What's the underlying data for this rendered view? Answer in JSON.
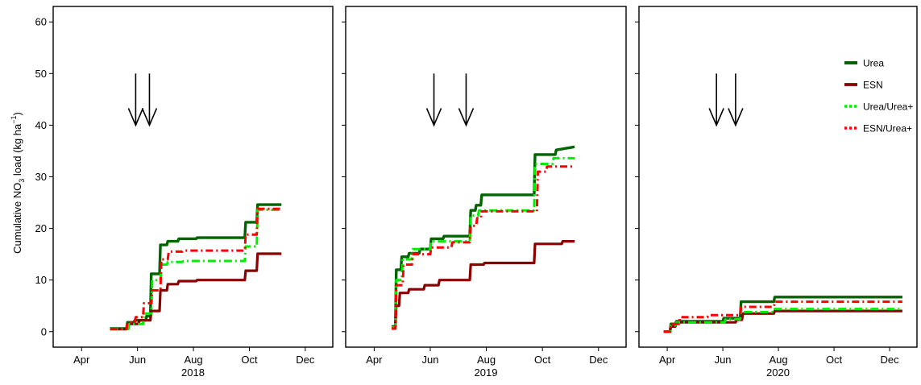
{
  "chart_data": {
    "type": "line",
    "ylabel": {
      "prefix": "Cumulative NO",
      "sub": "3",
      "middle": " load (kg ha",
      "sup": "−1",
      "suffix": ")"
    },
    "ylim": [
      -3,
      63
    ],
    "yticks": [
      0,
      10,
      20,
      30,
      40,
      50,
      60
    ],
    "xticks": [
      "Apr",
      "Jun",
      "Aug",
      "Oct",
      "Dec"
    ],
    "legend": {
      "placement": "top-right of third panel",
      "entries": [
        "Urea",
        "ESN",
        "Urea/Urea+",
        "ESN/Urea+"
      ]
    },
    "colors": {
      "Urea": "#006400",
      "ESN": "#8b0000",
      "Urea/Urea+": "#00ee00",
      "ESN/Urea+": "#ff0000"
    },
    "panels": [
      {
        "year": "2018",
        "arrows_x": [
          "2018-05-30",
          "2018-06-14"
        ],
        "series": [
          {
            "name": "Urea",
            "x": [
              "2018-05-02",
              "2018-05-20",
              "2018-05-21",
              "2018-05-28",
              "2018-05-29",
              "2018-06-10",
              "2018-06-11",
              "2018-06-15",
              "2018-06-16",
              "2018-06-25",
              "2018-06-26",
              "2018-07-03",
              "2018-07-04",
              "2018-07-15",
              "2018-07-16",
              "2018-08-04",
              "2018-08-05",
              "2018-09-26",
              "2018-09-27",
              "2018-10-09",
              "2018-10-10",
              "2018-11-05"
            ],
            "y": [
              0.6,
              0.6,
              1.8,
              1.8,
              2.2,
              2.2,
              3.0,
              3.0,
              11.2,
              11.2,
              16.8,
              16.8,
              17.5,
              17.5,
              18.0,
              18.0,
              18.2,
              18.2,
              21.2,
              21.2,
              24.6,
              24.6
            ]
          },
          {
            "name": "ESN",
            "x": [
              "2018-05-02",
              "2018-05-20",
              "2018-05-21",
              "2018-06-02",
              "2018-06-03",
              "2018-06-15",
              "2018-06-16",
              "2018-06-25",
              "2018-06-26",
              "2018-07-03",
              "2018-07-04",
              "2018-07-15",
              "2018-07-16",
              "2018-08-04",
              "2018-08-05",
              "2018-09-26",
              "2018-09-27",
              "2018-10-09",
              "2018-10-10",
              "2018-11-05"
            ],
            "y": [
              0.5,
              0.5,
              1.5,
              1.5,
              2.2,
              2.2,
              4.0,
              4.0,
              8.0,
              8.0,
              9.2,
              9.2,
              9.8,
              9.8,
              10.0,
              10.0,
              11.8,
              11.8,
              15.1,
              15.1
            ]
          },
          {
            "name": "Urea/Urea+",
            "x": [
              "2018-05-02",
              "2018-05-22",
              "2018-05-23",
              "2018-06-07",
              "2018-06-08",
              "2018-06-16",
              "2018-06-17",
              "2018-06-26",
              "2018-06-27",
              "2018-07-03",
              "2018-07-04",
              "2018-07-20",
              "2018-07-21",
              "2018-09-26",
              "2018-09-27",
              "2018-10-09",
              "2018-10-10",
              "2018-11-05"
            ],
            "y": [
              0.5,
              0.5,
              1.5,
              1.5,
              3.5,
              3.5,
              10.0,
              10.0,
              13.0,
              13.0,
              13.5,
              13.5,
              13.7,
              13.7,
              16.5,
              16.5,
              23.6,
              23.6
            ]
          },
          {
            "name": "ESN/Urea+",
            "x": [
              "2018-05-02",
              "2018-05-20",
              "2018-05-21",
              "2018-05-29",
              "2018-05-30",
              "2018-06-07",
              "2018-06-08",
              "2018-06-16",
              "2018-06-17",
              "2018-06-26",
              "2018-06-27",
              "2018-07-04",
              "2018-07-05",
              "2018-07-20",
              "2018-07-21",
              "2018-09-26",
              "2018-09-27",
              "2018-10-09",
              "2018-10-10",
              "2018-11-05"
            ],
            "y": [
              0.5,
              0.5,
              1.8,
              1.8,
              2.8,
              2.8,
              5.5,
              5.5,
              8.0,
              8.0,
              14.0,
              14.0,
              15.5,
              15.5,
              15.7,
              15.7,
              18.8,
              18.8,
              23.8,
              23.8
            ]
          }
        ]
      },
      {
        "year": "2019",
        "arrows_x": [
          "2019-06-05",
          "2019-07-10"
        ],
        "series": [
          {
            "name": "Urea",
            "x": [
              "2019-04-20",
              "2019-04-24",
              "2019-04-25",
              "2019-04-30",
              "2019-05-01",
              "2019-05-08",
              "2019-05-09",
              "2019-05-20",
              "2019-05-21",
              "2019-06-01",
              "2019-06-02",
              "2019-06-15",
              "2019-06-16",
              "2019-07-14",
              "2019-07-15",
              "2019-07-20",
              "2019-07-21",
              "2019-07-26",
              "2019-07-27",
              "2019-09-22",
              "2019-09-23",
              "2019-10-15",
              "2019-10-16",
              "2019-11-05"
            ],
            "y": [
              1.0,
              1.0,
              12.0,
              12.0,
              14.5,
              14.5,
              15.2,
              15.2,
              16.0,
              16.0,
              18.0,
              18.0,
              18.5,
              18.5,
              23.5,
              23.5,
              24.5,
              24.5,
              26.5,
              26.5,
              34.3,
              34.3,
              35.2,
              35.8
            ]
          },
          {
            "name": "ESN",
            "x": [
              "2019-04-20",
              "2019-04-24",
              "2019-04-25",
              "2019-04-28",
              "2019-04-29",
              "2019-05-08",
              "2019-05-09",
              "2019-05-25",
              "2019-05-26",
              "2019-06-10",
              "2019-06-11",
              "2019-07-14",
              "2019-07-15",
              "2019-07-29",
              "2019-07-30",
              "2019-09-22",
              "2019-09-23",
              "2019-10-22",
              "2019-10-23",
              "2019-11-05"
            ],
            "y": [
              0.6,
              0.6,
              5.0,
              5.0,
              7.5,
              7.5,
              8.2,
              8.2,
              9.0,
              9.0,
              10.0,
              10.0,
              13.0,
              13.0,
              13.3,
              13.3,
              17.0,
              17.0,
              17.5,
              17.5
            ]
          },
          {
            "name": "Urea/Urea+",
            "x": [
              "2019-04-20",
              "2019-04-24",
              "2019-04-25",
              "2019-05-01",
              "2019-05-02",
              "2019-05-12",
              "2019-05-13",
              "2019-06-01",
              "2019-06-02",
              "2019-07-14",
              "2019-07-15",
              "2019-07-23",
              "2019-07-24",
              "2019-09-22",
              "2019-09-23",
              "2019-10-12",
              "2019-10-13",
              "2019-11-05"
            ],
            "y": [
              0.8,
              0.8,
              10.0,
              10.0,
              14.0,
              14.0,
              16.0,
              16.0,
              17.5,
              17.5,
              22.5,
              22.5,
              23.5,
              23.5,
              32.5,
              32.5,
              33.6,
              33.6
            ]
          },
          {
            "name": "ESN/Urea+",
            "x": [
              "2019-04-20",
              "2019-04-24",
              "2019-04-25",
              "2019-05-02",
              "2019-05-03",
              "2019-05-12",
              "2019-05-13",
              "2019-06-01",
              "2019-06-02",
              "2019-06-24",
              "2019-06-25",
              "2019-07-14",
              "2019-07-15",
              "2019-07-21",
              "2019-07-22",
              "2019-07-26",
              "2019-07-27",
              "2019-09-25",
              "2019-09-26",
              "2019-10-05",
              "2019-10-06",
              "2019-11-05"
            ],
            "y": [
              0.6,
              0.6,
              9.0,
              9.0,
              13.0,
              13.0,
              15.0,
              15.0,
              16.3,
              16.3,
              17.3,
              17.3,
              20.5,
              20.5,
              22.0,
              22.0,
              23.3,
              23.3,
              31.0,
              31.0,
              32.0,
              32.0
            ]
          }
        ]
      },
      {
        "year": "2020",
        "arrows_x": [
          "2020-05-25",
          "2020-06-15"
        ],
        "series": [
          {
            "name": "Urea",
            "x": [
              "2020-03-28",
              "2020-04-04",
              "2020-04-05",
              "2020-04-10",
              "2020-04-11",
              "2020-06-01",
              "2020-06-02",
              "2020-06-20",
              "2020-06-21",
              "2020-07-27",
              "2020-07-28",
              "2020-12-15"
            ],
            "y": [
              0.0,
              0.0,
              1.5,
              1.5,
              2.0,
              2.0,
              2.6,
              2.6,
              5.8,
              5.8,
              6.7,
              6.7
            ]
          },
          {
            "name": "ESN",
            "x": [
              "2020-03-28",
              "2020-04-04",
              "2020-04-05",
              "2020-04-10",
              "2020-04-11",
              "2020-06-15",
              "2020-06-16",
              "2020-06-22",
              "2020-06-23",
              "2020-07-27",
              "2020-07-28",
              "2020-12-15"
            ],
            "y": [
              0.0,
              0.0,
              1.0,
              1.0,
              1.8,
              1.8,
              2.3,
              2.3,
              3.5,
              3.5,
              4.0,
              4.0
            ]
          },
          {
            "name": "Urea/Urea+",
            "x": [
              "2020-03-28",
              "2020-04-04",
              "2020-04-05",
              "2020-04-10",
              "2020-04-11",
              "2020-06-03",
              "2020-06-04",
              "2020-06-20",
              "2020-06-21",
              "2020-07-27",
              "2020-07-28",
              "2020-12-15"
            ],
            "y": [
              0.0,
              0.0,
              1.2,
              1.2,
              1.8,
              1.8,
              2.4,
              2.4,
              3.8,
              3.8,
              4.4,
              4.4
            ]
          },
          {
            "name": "ESN/Urea+",
            "x": [
              "2020-03-28",
              "2020-04-04",
              "2020-04-05",
              "2020-04-14",
              "2020-04-15",
              "2020-05-15",
              "2020-05-16",
              "2020-06-20",
              "2020-06-21",
              "2020-07-27",
              "2020-07-28",
              "2020-12-15"
            ],
            "y": [
              0.0,
              0.0,
              1.5,
              1.5,
              2.8,
              2.8,
              3.2,
              3.2,
              4.8,
              4.8,
              5.8,
              5.8
            ]
          }
        ]
      }
    ]
  }
}
